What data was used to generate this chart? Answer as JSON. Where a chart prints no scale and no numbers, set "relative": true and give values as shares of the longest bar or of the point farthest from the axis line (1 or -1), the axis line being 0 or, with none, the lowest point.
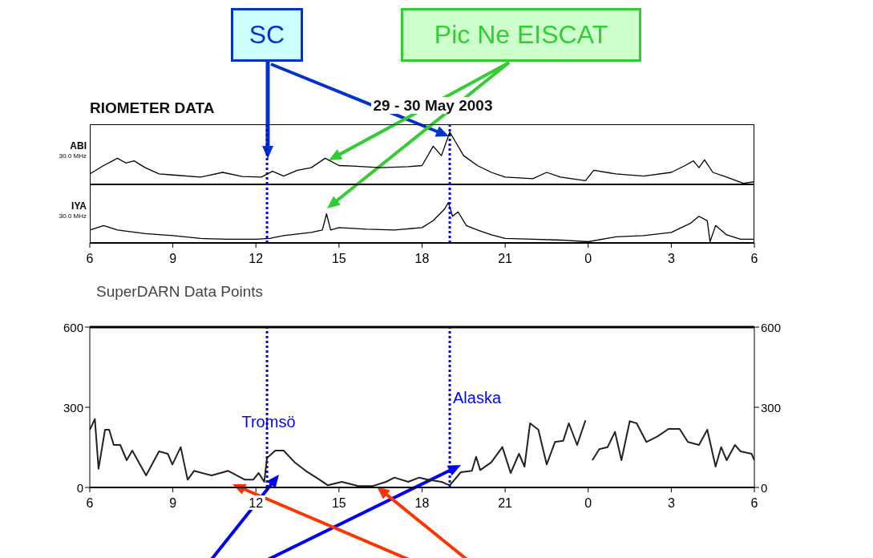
{
  "chart_data": [
    {
      "type": "line",
      "title": "RIOMETER DATA",
      "subtitle": "29 - 30 May 2003",
      "ylabel": "ABI",
      "annotations": [
        "30.0 MHz",
        "SC",
        "Pic Ne EISCAT"
      ],
      "relative": true,
      "tick_labels": false,
      "marker": "none",
      "line_style": "solid",
      "xlim": [
        "2003-05-29T06:00",
        "2003-05-30T06:00"
      ],
      "ref_lines": [
        {
          "axis": "x",
          "value": "2003-05-29T12:24",
          "color": "#0000ff",
          "line_style": "dotted"
        },
        {
          "axis": "x",
          "value": "2003-05-29T19:00",
          "color": "#0000ff",
          "line_style": "dotted"
        }
      ],
      "series": [
        {
          "color": "#000000",
          "x": [
            "2003-05-29T06:00",
            "2003-05-29T06:30",
            "2003-05-29T07:00",
            "2003-05-29T07:18",
            "2003-05-29T07:36",
            "2003-05-29T08:00",
            "2003-05-29T08:30",
            "2003-05-29T09:00",
            "2003-05-29T10:00",
            "2003-05-29T10:48",
            "2003-05-29T11:30",
            "2003-05-29T12:12",
            "2003-05-29T12:36",
            "2003-05-29T13:00",
            "2003-05-29T13:30",
            "2003-05-29T14:00",
            "2003-05-29T14:30",
            "2003-05-29T15:00",
            "2003-05-29T15:30",
            "2003-05-29T16:30",
            "2003-05-29T17:30",
            "2003-05-29T18:00",
            "2003-05-29T18:24",
            "2003-05-29T18:42",
            "2003-05-29T19:00",
            "2003-05-29T19:12",
            "2003-05-29T19:30",
            "2003-05-29T20:00",
            "2003-05-29T20:30",
            "2003-05-29T21:00",
            "2003-05-29T22:00",
            "2003-05-29T22:30",
            "2003-05-29T23:00",
            "2003-05-29T23:54",
            "2003-05-30T00:12",
            "2003-05-30T01:00",
            "2003-05-30T02:00",
            "2003-05-30T03:00",
            "2003-05-30T03:30",
            "2003-05-30T03:48",
            "2003-05-30T04:00",
            "2003-05-30T04:12",
            "2003-05-30T04:30",
            "2003-05-30T05:00",
            "2003-05-30T05:36",
            "2003-05-30T06:00"
          ],
          "values": [
            0.2,
            0.36,
            0.5,
            0.41,
            0.45,
            0.32,
            0.2,
            0.18,
            0.14,
            0.23,
            0.15,
            0.14,
            0.25,
            0.16,
            0.27,
            0.32,
            0.5,
            0.36,
            0.35,
            0.32,
            0.34,
            0.36,
            0.73,
            0.55,
            1,
            0.82,
            0.55,
            0.36,
            0.23,
            0.14,
            0.11,
            0.23,
            0.14,
            0.07,
            0.27,
            0.2,
            0.16,
            0.23,
            0.36,
            0.45,
            0.32,
            0.47,
            0.23,
            0.14,
            0.02,
            0.05
          ]
        }
      ]
    },
    {
      "type": "line",
      "ylabel": "IYA",
      "annotations": [
        "30.0 MHz"
      ],
      "relative": true,
      "tick_labels": "x",
      "marker": "none",
      "line_style": "solid",
      "xlim": [
        "2003-05-29T06:00",
        "2003-05-30T06:00"
      ],
      "xticks": [
        {
          "value": "2003-05-29T06:00",
          "label": "6"
        },
        {
          "value": "2003-05-29T09:00",
          "label": "9"
        },
        {
          "value": "2003-05-29T12:00",
          "label": "12"
        },
        {
          "value": "2003-05-29T15:00",
          "label": "15"
        },
        {
          "value": "2003-05-29T18:00",
          "label": "18"
        },
        {
          "value": "2003-05-29T21:00",
          "label": "21"
        },
        {
          "value": "2003-05-30T00:00",
          "label": "0"
        },
        {
          "value": "2003-05-30T03:00",
          "label": "3"
        },
        {
          "value": "2003-05-30T06:00",
          "label": "6"
        }
      ],
      "ref_lines": [
        {
          "axis": "x",
          "value": "2003-05-29T12:24",
          "color": "#0000ff",
          "line_style": "dotted"
        },
        {
          "axis": "x",
          "value": "2003-05-29T19:00",
          "color": "#0000ff",
          "line_style": "dotted"
        }
      ],
      "series": [
        {
          "color": "#000000",
          "x": [
            "2003-05-29T06:00",
            "2003-05-29T06:30",
            "2003-05-29T07:00",
            "2003-05-29T08:00",
            "2003-05-29T09:00",
            "2003-05-29T10:00",
            "2003-05-29T11:00",
            "2003-05-29T12:00",
            "2003-05-29T12:30",
            "2003-05-29T13:00",
            "2003-05-29T14:00",
            "2003-05-29T14:24",
            "2003-05-29T14:33",
            "2003-05-29T14:42",
            "2003-05-29T15:00",
            "2003-05-29T16:00",
            "2003-05-29T17:00",
            "2003-05-29T18:00",
            "2003-05-29T18:24",
            "2003-05-29T18:48",
            "2003-05-29T18:57",
            "2003-05-29T19:06",
            "2003-05-29T19:18",
            "2003-05-29T19:36",
            "2003-05-29T20:00",
            "2003-05-29T20:30",
            "2003-05-29T21:00",
            "2003-05-29T22:00",
            "2003-05-29T23:00",
            "2003-05-30T00:00",
            "2003-05-30T01:00",
            "2003-05-30T02:00",
            "2003-05-30T03:00",
            "2003-05-30T03:42",
            "2003-05-30T04:00",
            "2003-05-30T04:18",
            "2003-05-30T04:24",
            "2003-05-30T04:36",
            "2003-05-30T05:00",
            "2003-05-30T05:30",
            "2003-05-30T06:00"
          ],
          "values": [
            0.32,
            0.43,
            0.32,
            0.23,
            0.18,
            0.11,
            0.09,
            0.09,
            0.11,
            0.18,
            0.26,
            0.32,
            0.72,
            0.32,
            0.38,
            0.34,
            0.32,
            0.38,
            0.55,
            0.83,
            1,
            0.66,
            0.77,
            0.43,
            0.32,
            0.2,
            0.11,
            0.09,
            0.07,
            0.03,
            0.15,
            0.18,
            0.26,
            0.49,
            0.66,
            0.55,
            0.03,
            0.43,
            0.2,
            0.09,
            0.09
          ]
        }
      ]
    },
    {
      "type": "line",
      "title": "SuperDARN Data Points",
      "annotations": [
        "Tromsö",
        "Alaska"
      ],
      "marker": "none",
      "line_style": "solid",
      "xlim": [
        "2003-05-29T06:00",
        "2003-05-30T06:00"
      ],
      "xticks": [
        {
          "value": "2003-05-29T06:00",
          "label": "6"
        },
        {
          "value": "2003-05-29T09:00",
          "label": "9"
        },
        {
          "value": "2003-05-29T12:00",
          "label": "12"
        },
        {
          "value": "2003-05-29T15:00",
          "label": "15"
        },
        {
          "value": "2003-05-29T18:00",
          "label": "18"
        },
        {
          "value": "2003-05-29T21:00",
          "label": "21"
        },
        {
          "value": "2003-05-30T00:00",
          "label": "0"
        },
        {
          "value": "2003-05-30T03:00",
          "label": "3"
        },
        {
          "value": "2003-05-30T06:00",
          "label": "6"
        }
      ],
      "ylim": [
        0,
        600
      ],
      "yticks": [
        0,
        300,
        600
      ],
      "y2lim": [
        0,
        600
      ],
      "y2ticks": [
        0,
        300,
        600
      ],
      "ref_lines": [
        {
          "axis": "x",
          "value": "2003-05-29T12:24",
          "color": "#0000ff",
          "line_style": "dotted"
        },
        {
          "axis": "x",
          "value": "2003-05-29T19:00",
          "color": "#0000ff",
          "line_style": "dotted"
        }
      ],
      "series": [
        {
          "color": "#222222",
          "x": [
            "2003-05-29T06:00",
            "2003-05-29T06:11",
            "2003-05-29T06:19",
            "2003-05-29T06:33",
            "2003-05-29T06:42",
            "2003-05-29T06:52",
            "2003-05-29T07:06",
            "2003-05-29T07:20",
            "2003-05-29T07:32",
            "2003-05-29T08:02",
            "2003-05-29T08:30",
            "2003-05-29T08:49",
            "2003-05-29T08:59",
            "2003-05-29T09:17",
            "2003-05-29T09:32",
            "2003-05-29T09:46",
            "2003-05-29T10:24",
            "2003-05-29T11:00",
            "2003-05-29T11:36",
            "2003-05-29T11:54",
            "2003-05-29T12:06",
            "2003-05-29T12:18",
            "2003-05-29T12:24",
            "2003-05-29T12:42",
            "2003-05-29T13:00",
            "2003-05-29T13:24",
            "2003-05-29T13:48",
            "2003-05-29T14:18",
            "2003-05-29T14:36",
            "2003-05-29T15:06",
            "2003-05-29T15:42",
            "2003-05-29T16:12",
            "2003-05-29T16:42",
            "2003-05-29T17:00",
            "2003-05-29T17:30",
            "2003-05-29T17:54",
            "2003-05-29T18:12",
            "2003-05-29T18:42",
            "2003-05-29T19:00",
            "2003-05-29T19:24",
            "2003-05-29T19:48",
            "2003-05-29T19:57",
            "2003-05-29T20:06",
            "2003-05-29T20:30",
            "2003-05-29T20:54",
            "2003-05-29T21:12",
            "2003-05-29T21:30",
            "2003-05-29T21:42",
            "2003-05-29T21:54",
            "2003-05-29T22:12",
            "2003-05-29T22:30",
            "2003-05-29T22:48",
            "2003-05-29T23:06",
            "2003-05-29T23:18",
            "2003-05-29T23:36",
            "2003-05-29T23:54",
            "2003-05-30T00:00",
            "2003-05-30T00:09",
            "2003-05-30T00:24",
            "2003-05-30T00:42",
            "2003-05-30T00:58",
            "2003-05-30T01:12",
            "2003-05-30T01:30",
            "2003-05-30T01:45",
            "2003-05-30T02:06",
            "2003-05-30T02:30",
            "2003-05-30T02:54",
            "2003-05-30T03:18",
            "2003-05-30T03:36",
            "2003-05-30T04:00",
            "2003-05-30T04:18",
            "2003-05-30T04:36",
            "2003-05-30T04:48",
            "2003-05-30T05:00",
            "2003-05-30T05:18",
            "2003-05-30T05:30",
            "2003-05-30T05:54",
            "2003-05-30T06:00"
          ],
          "values": [
            216,
            256,
            70,
            216,
            216,
            159,
            159,
            102,
            138,
            45,
            135,
            126,
            86,
            151,
            29,
            62,
            45,
            62,
            29,
            29,
            54,
            21,
            110,
            138,
            138,
            94,
            62,
            29,
            8,
            21,
            5,
            5,
            21,
            37,
            21,
            37,
            29,
            21,
            8,
            57,
            62,
            115,
            65,
            94,
            151,
            54,
            126,
            78,
            240,
            216,
            86,
            170,
            175,
            240,
            159,
            251,
            null,
            102,
            143,
            151,
            208,
            102,
            248,
            240,
            170,
            191,
            219,
            219,
            170,
            159,
            216,
            78,
            151,
            102,
            159,
            135,
            126,
            102
          ]
        }
      ]
    }
  ]
}
